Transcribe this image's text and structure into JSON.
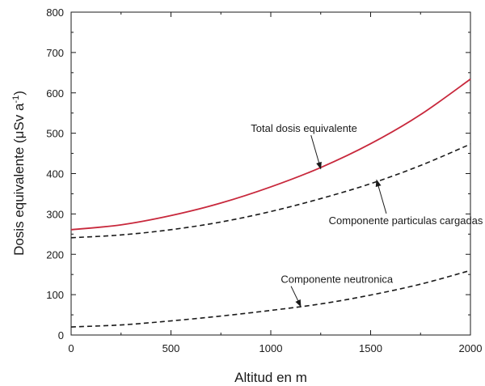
{
  "chart_data": {
    "type": "line",
    "xlabel": "Altitud en m",
    "ylabel": "Dosis equivalente (μSv a",
    "ylabel_sup": "-1",
    "ylabel_close": ")",
    "xlim": [
      0,
      2000
    ],
    "ylim": [
      0,
      800
    ],
    "xticks": [
      0,
      500,
      1000,
      1500,
      2000
    ],
    "yticks": [
      0,
      100,
      200,
      300,
      400,
      500,
      600,
      700,
      800
    ],
    "grid": false,
    "series": [
      {
        "name": "Total dosis equivalente",
        "style": "solid",
        "color": "#c8283c",
        "x": [
          0,
          250,
          500,
          750,
          1000,
          1250,
          1500,
          1750,
          2000
        ],
        "y": [
          261,
          273,
          296,
          327,
          367,
          415,
          474,
          546,
          634
        ]
      },
      {
        "name": "Componente particulas cargadas",
        "style": "dashed",
        "color": "#1a1a1a",
        "x": [
          0,
          250,
          500,
          750,
          1000,
          1250,
          1500,
          1750,
          2000
        ],
        "y": [
          241,
          248,
          261,
          280,
          306,
          338,
          375,
          420,
          473
        ]
      },
      {
        "name": "Componente neutronica",
        "style": "dashed",
        "color": "#1a1a1a",
        "x": [
          0,
          250,
          500,
          750,
          1000,
          1250,
          1500,
          1750,
          2000
        ],
        "y": [
          20,
          25,
          35,
          47,
          61,
          77,
          99,
          126,
          160
        ]
      }
    ],
    "annotations": [
      {
        "text": "Total dosis equivalente",
        "target": [
          1250,
          412
        ],
        "text_at": [
          900,
          503
        ]
      },
      {
        "text": "Componente particulas cargadas",
        "target": [
          1530,
          384
        ],
        "text_at": [
          1290,
          275
        ]
      },
      {
        "text": "Componente neutronica",
        "target": [
          1150,
          71
        ],
        "text_at": [
          1050,
          129
        ]
      }
    ]
  }
}
